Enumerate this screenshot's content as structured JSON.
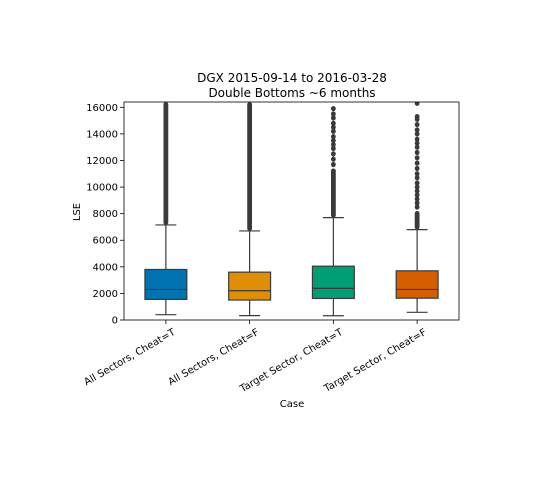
{
  "chart_data": {
    "type": "box",
    "title": "DGX 2015-09-14 to 2016-03-28",
    "subtitle": "Double Bottoms ~6 months",
    "xlabel": "Case",
    "ylabel": "LSE",
    "ylim": [
      0,
      16400
    ],
    "yticks": [
      0,
      2000,
      4000,
      6000,
      8000,
      10000,
      12000,
      14000,
      16000
    ],
    "ytick_labels": [
      "0",
      "2000",
      "4000",
      "6000",
      "8000",
      "10000",
      "12000",
      "14000",
      "16000"
    ],
    "grid": false,
    "categories": [
      "All Sectors, Cheat=T",
      "All Sectors, Cheat=F",
      "Target Sector, Cheat=T",
      "Target Sector, Cheat=F"
    ],
    "boxes": [
      {
        "color": "#0173b2",
        "whisker_low": 400,
        "q1": 1550,
        "median": 2300,
        "q3": 3800,
        "whisker_high": 7150,
        "outliers": {
          "dense_from": 7150,
          "dense_to": 16400,
          "sparse": []
        }
      },
      {
        "color": "#de8f05",
        "whisker_low": 330,
        "q1": 1500,
        "median": 2200,
        "q3": 3600,
        "whisker_high": 6700,
        "outliers": {
          "dense_from": 6700,
          "dense_to": 16400,
          "sparse": []
        }
      },
      {
        "color": "#029e73",
        "whisker_low": 320,
        "q1": 1620,
        "median": 2380,
        "q3": 4050,
        "whisker_high": 7700,
        "outliers": {
          "dense_from": 7700,
          "dense_to": 11400,
          "sparse": [
            11700,
            12100,
            12500,
            12900,
            13200,
            13500,
            13800,
            14200,
            14500,
            14800,
            15200,
            15500,
            15900
          ]
        }
      },
      {
        "color": "#d55e00",
        "whisker_low": 580,
        "q1": 1640,
        "median": 2300,
        "q3": 3700,
        "whisker_high": 6800,
        "outliers": {
          "dense_from": 6800,
          "dense_to": 8200,
          "sparse": [
            8500,
            8800,
            9100,
            9400,
            9700,
            10000,
            10300,
            10700,
            11000,
            11400,
            11800,
            12200,
            12600,
            13000,
            13300,
            13600,
            14000,
            14300,
            14700,
            15100,
            15300,
            16300
          ]
        }
      }
    ]
  }
}
